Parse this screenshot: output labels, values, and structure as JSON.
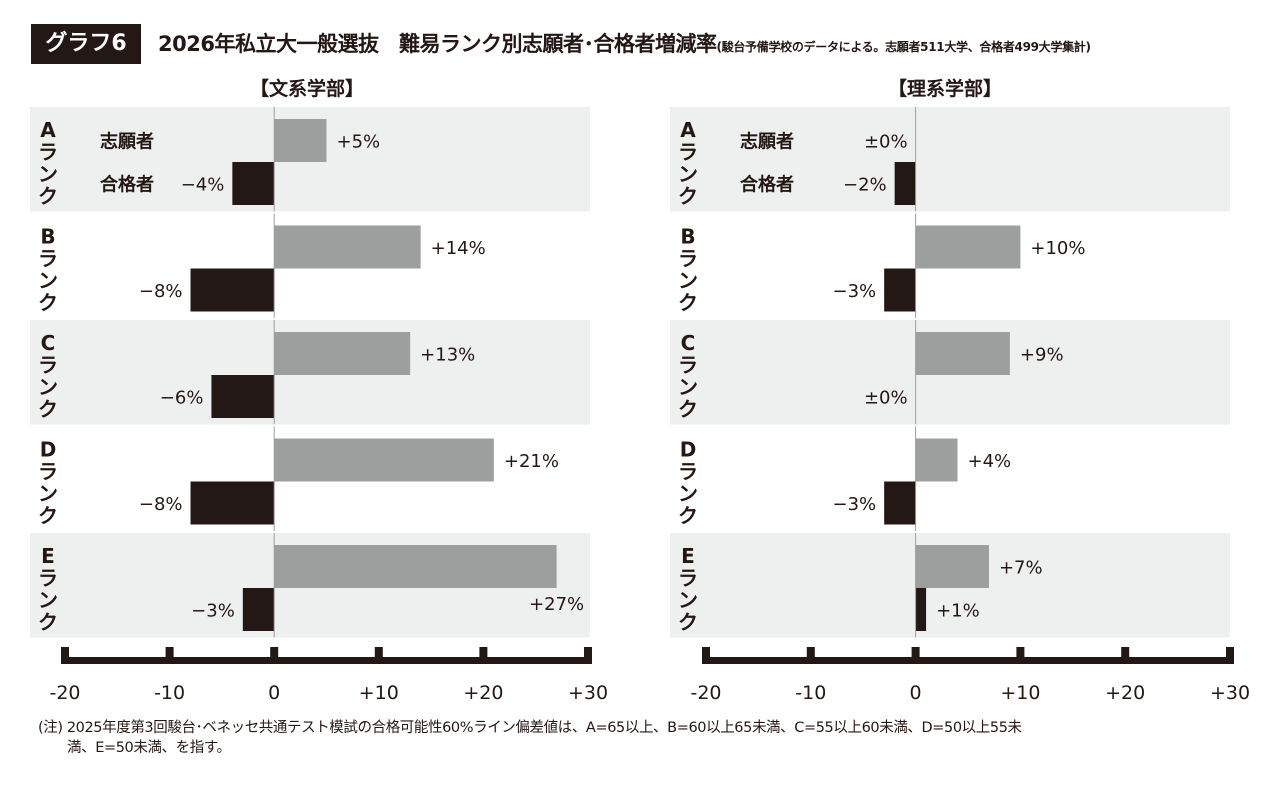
{
  "header": {
    "badge": "グラフ6",
    "title": "2026年私立大一般選抜　難易ランク別志願者･合格者増減率",
    "subtitle": "(駿台予備学校のデータによる。志願者511大学、合格者499大学集計)"
  },
  "note": {
    "line1": "(注) 2025年度第3回駿台･ベネッセ共通テスト模試の合格可能性60%ライン偏差値は、A=65以上、B=60以上65未満、C=55以上60未満、D=50以上55未",
    "line2": "満、E=50未満、を指す。"
  },
  "chart_data": {
    "type": "bar",
    "orientation": "horizontal",
    "categories": [
      "Aランク",
      "Bランク",
      "Cランク",
      "Dランク",
      "Eランク"
    ],
    "row_labels": [
      "志願者",
      "合格者"
    ],
    "xlim": [
      -20,
      30
    ],
    "xticks": [
      "-20",
      "-10",
      "0",
      "+10",
      "+20",
      "+30"
    ],
    "colors": {
      "applicants": "#9d9e9e",
      "accepted": "#231815",
      "row_bg": "#eeefef"
    },
    "panels": [
      {
        "title": "【文系学部】",
        "series": [
          {
            "name": "志願者",
            "values": [
              5,
              14,
              13,
              21,
              27
            ],
            "labels": [
              "+5%",
              "+14%",
              "+13%",
              "+21%",
              "+27%"
            ]
          },
          {
            "name": "合格者",
            "values": [
              -4,
              -8,
              -6,
              -8,
              -3
            ],
            "labels": [
              "−4%",
              "−8%",
              "−6%",
              "−8%",
              "−3%"
            ]
          }
        ]
      },
      {
        "title": "【理系学部】",
        "series": [
          {
            "name": "志願者",
            "values": [
              0,
              10,
              9,
              4,
              7
            ],
            "labels": [
              "±0%",
              "+10%",
              "+9%",
              "+4%",
              "+7%"
            ]
          },
          {
            "name": "合格者",
            "values": [
              -2,
              -3,
              0,
              -3,
              1
            ],
            "labels": [
              "−2%",
              "−3%",
              "±0%",
              "−3%",
              "+1%"
            ]
          }
        ]
      }
    ]
  }
}
